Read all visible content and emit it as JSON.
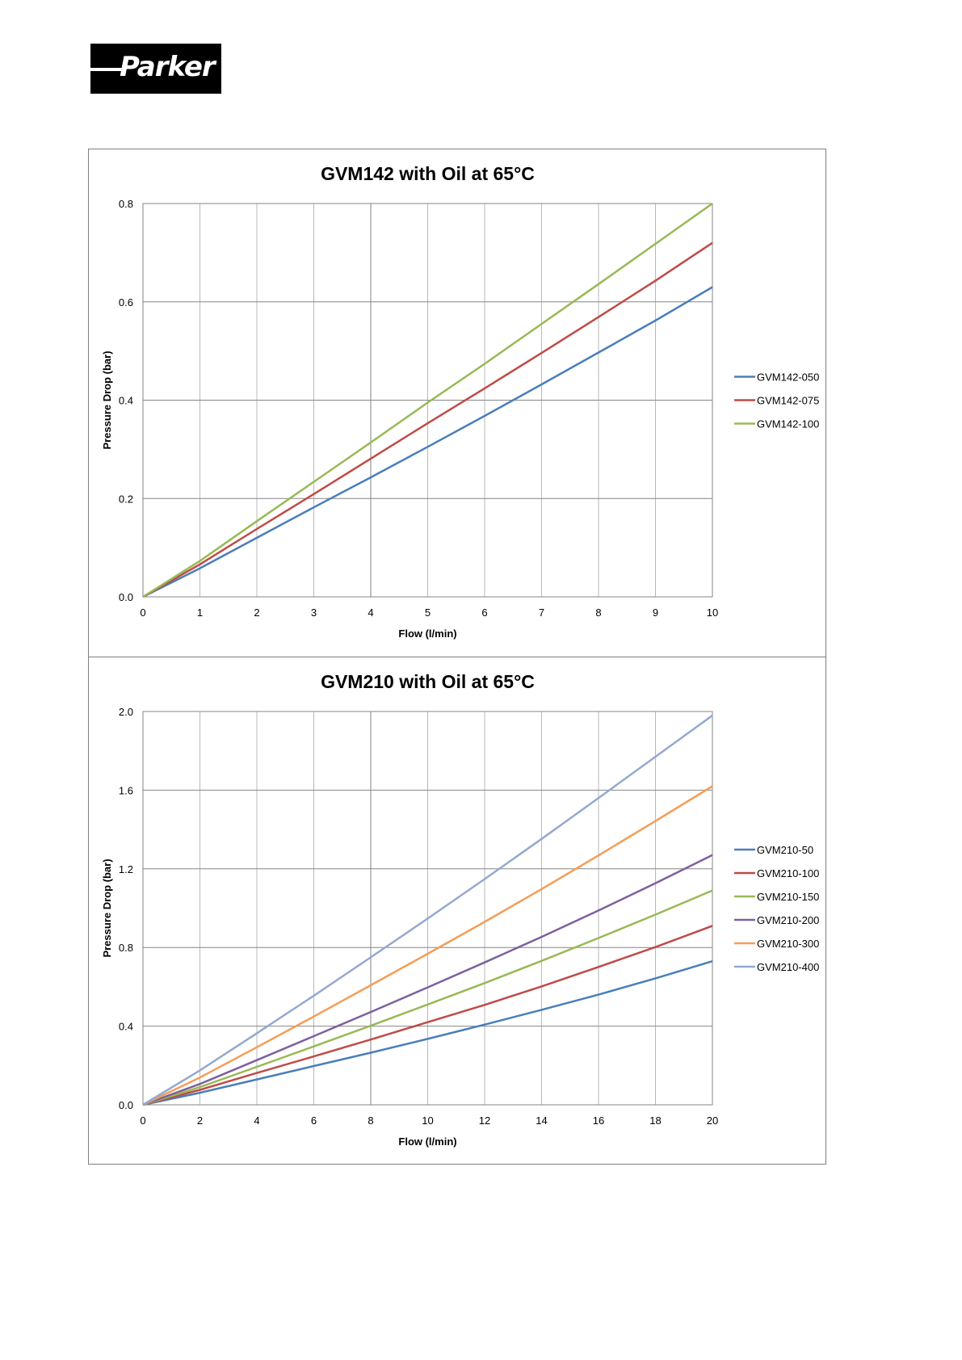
{
  "logo": {
    "text": "Parker"
  },
  "chart_data": [
    {
      "type": "line",
      "title": "GVM142 with Oil at 65°C",
      "xlabel": "Flow (l/min)",
      "ylabel": "Pressure Drop (bar)",
      "xlim": [
        0,
        10
      ],
      "ylim": [
        0,
        0.8
      ],
      "x_ticks": [
        "0",
        "1",
        "2",
        "3",
        "4",
        "5",
        "6",
        "7",
        "8",
        "9",
        "10"
      ],
      "y_ticks": [
        "0.0",
        "0.2",
        "0.4",
        "0.6",
        "0.8"
      ],
      "grid": true,
      "legend": "right",
      "x": [
        0,
        1,
        2,
        3,
        4,
        5,
        6,
        7,
        8,
        9,
        10
      ],
      "series": [
        {
          "name": "GVM142-050",
          "color": "#4a7ebb",
          "values": [
            0,
            0.058,
            0.12,
            0.182,
            0.243,
            0.305,
            0.368,
            0.432,
            0.497,
            0.562,
            0.63
          ]
        },
        {
          "name": "GVM142-075",
          "color": "#be4b48",
          "values": [
            0,
            0.066,
            0.138,
            0.209,
            0.281,
            0.353,
            0.424,
            0.496,
            0.569,
            0.643,
            0.72
          ]
        },
        {
          "name": "GVM142-100",
          "color": "#98b954",
          "values": [
            0,
            0.073,
            0.154,
            0.234,
            0.314,
            0.395,
            0.474,
            0.555,
            0.636,
            0.718,
            0.8
          ]
        }
      ]
    },
    {
      "type": "line",
      "title": "GVM210 with Oil at 65°C",
      "xlabel": "Flow (l/min)",
      "ylabel": "Pressure Drop (bar)",
      "xlim": [
        0,
        20
      ],
      "ylim": [
        0,
        2.0
      ],
      "x_ticks": [
        "0",
        "2",
        "4",
        "6",
        "8",
        "10",
        "12",
        "14",
        "16",
        "18",
        "20"
      ],
      "y_ticks": [
        "0.0",
        "0.4",
        "0.8",
        "1.2",
        "1.6",
        "2.0"
      ],
      "grid": true,
      "legend": "right",
      "x": [
        0,
        2,
        4,
        6,
        8,
        10,
        12,
        14,
        16,
        18,
        20
      ],
      "series": [
        {
          "name": "GVM210-50",
          "color": "#4a7ebb",
          "values": [
            0,
            0.061,
            0.129,
            0.197,
            0.265,
            0.335,
            0.408,
            0.483,
            0.56,
            0.643,
            0.73
          ]
        },
        {
          "name": "GVM210-100",
          "color": "#be4b48",
          "values": [
            0,
            0.076,
            0.162,
            0.246,
            0.332,
            0.42,
            0.508,
            0.602,
            0.701,
            0.802,
            0.91
          ]
        },
        {
          "name": "GVM210-150",
          "color": "#98b954",
          "values": [
            0,
            0.09,
            0.193,
            0.297,
            0.402,
            0.51,
            0.619,
            0.732,
            0.848,
            0.967,
            1.09
          ]
        },
        {
          "name": "GVM210-200",
          "color": "#7d60a0",
          "values": [
            0,
            0.106,
            0.227,
            0.349,
            0.472,
            0.597,
            0.724,
            0.854,
            0.988,
            1.127,
            1.27
          ]
        },
        {
          "name": "GVM210-300",
          "color": "#f59d56",
          "values": [
            0,
            0.139,
            0.293,
            0.449,
            0.608,
            0.768,
            0.93,
            1.097,
            1.268,
            1.443,
            1.62
          ]
        },
        {
          "name": "GVM210-400",
          "color": "#93a9cf",
          "values": [
            0,
            0.175,
            0.364,
            0.555,
            0.75,
            0.947,
            1.148,
            1.352,
            1.56,
            1.77,
            1.98
          ]
        }
      ]
    }
  ]
}
